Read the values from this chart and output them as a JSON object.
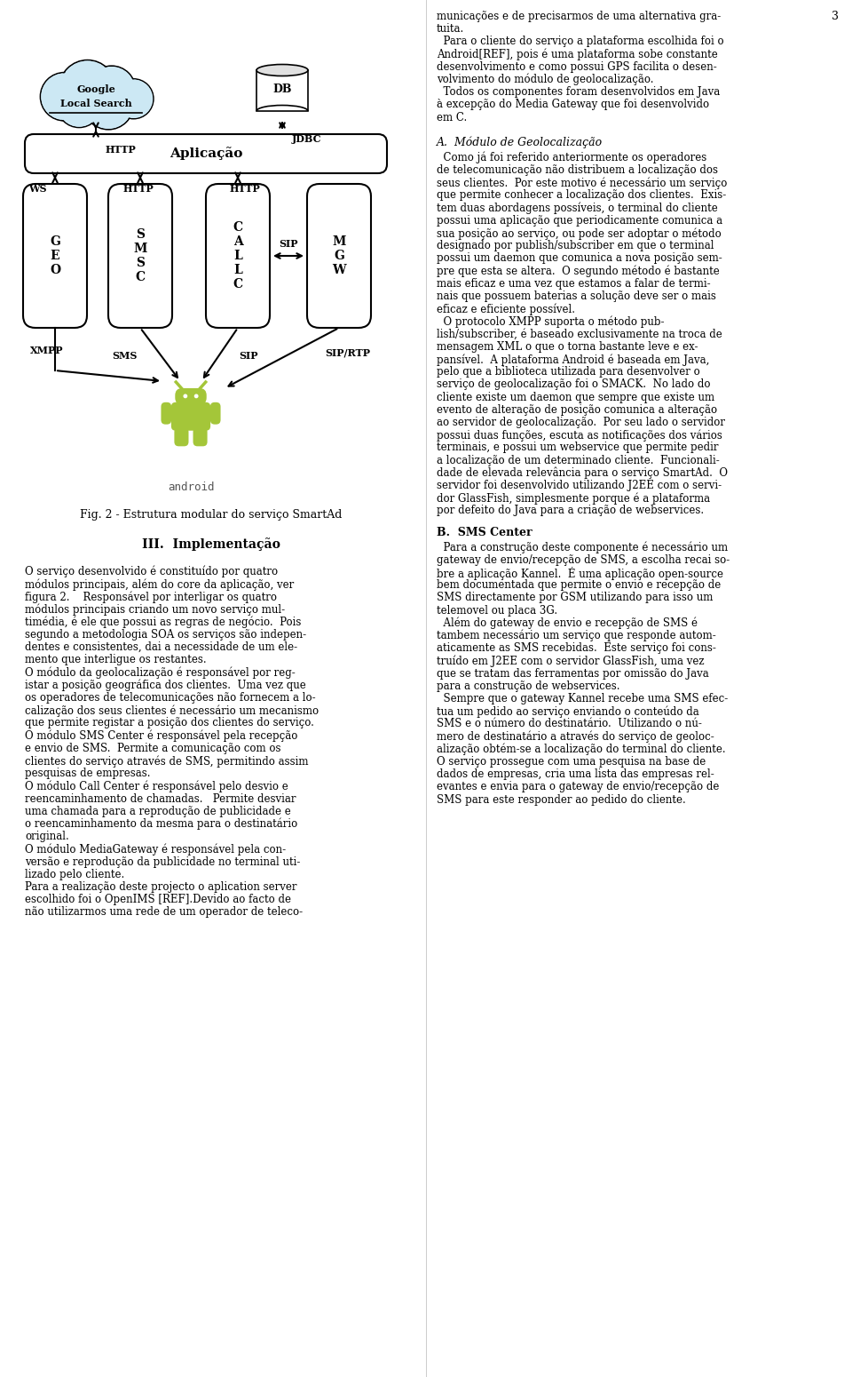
{
  "page_number": "3",
  "fig_caption": "Fig. 2 - Estrutura modular do serviço SmartAd",
  "section_title": "III.  Implementação",
  "left_col_text": [
    "O serviço desenvolvido é constituído por quatro",
    "módulos principais, além do core da aplicação, ver",
    "figura 2.    Responsável por interligar os quatro",
    "módulos principais criando um novo serviço mul-",
    "timédia, é ele que possui as regras de negócio.  Pois",
    "segundo a metodologia SOA os serviços são indepen-",
    "dentes e consistentes, dai a necessidade de um ele-",
    "mento que interligue os restantes.",
    "O módulo da geolocalização é responsável por reg-",
    "istar a posição geográfica dos clientes.  Uma vez que",
    "os operadores de telecomunicações não fornecem a lo-",
    "calização dos seus clientes é necessário um mecanismo",
    "que permite registar a posição dos clientes do serviço.",
    "O módulo SMS Center é responsável pela recepção",
    "e envio de SMS.  Permite a comunicação com os",
    "clientes do serviço através de SMS, permitindo assim",
    "pesquisas de empresas.",
    "O módulo Call Center é responsável pelo desvio e",
    "reencaminhamento de chamadas.   Permite desviar",
    "uma chamada para a reprodução de publicidade e",
    "o reencaminhamento da mesma para o destinatário",
    "original.",
    "O módulo MediaGateway é responsável pela con-",
    "versão e reprodução da publicidade no terminal uti-",
    "lizado pelo cliente.",
    "Para a realização deste projecto o aplication server",
    "escolhido foi o OpenIMS [REF].Devido ao facto de",
    "não utilizarmos uma rede de um operador de teleco-"
  ],
  "right_col_intro": [
    "municações e de precisarmos de uma alternativa gra-",
    "tuita.",
    "  Para o cliente do serviço a plataforma escolhida foi o",
    "Android[REF], pois é uma plataforma sobe constante",
    "desenvolvimento e como possui GPS facilita o desen-",
    "volvimento do módulo de geolocalização.",
    "  Todos os componentes foram desenvolvidos em Java",
    "à excepção do Media Gateway que foi desenvolvido",
    "em C."
  ],
  "subsection_A": "A.  Módulo de Geolocalização",
  "subsection_A_text": [
    "  Como já foi referido anteriormente os operadores",
    "de telecomunicação não distribuem a localização dos",
    "seus clientes.  Por este motivo é necessário um serviço",
    "que permite conhecer a localização dos clientes.  Exis-",
    "tem duas abordagens possíveis, o terminal do cliente",
    "possui uma aplicação que periodicamente comunica a",
    "sua posição ao serviço, ou pode ser adoptar o método",
    "designado por publish/subscriber em que o terminal",
    "possui um daemon que comunica a nova posição sem-",
    "pre que esta se altera.  O segundo método é bastante",
    "mais eficaz e uma vez que estamos a falar de termi-",
    "nais que possuem baterias a solução deve ser o mais",
    "eficaz e eficiente possível.",
    "  O protocolo XMPP suporta o método pub-",
    "lish/subscriber, é baseado exclusivamente na troca de",
    "mensagem XML o que o torna bastante leve e ex-",
    "pansível.  A plataforma Android é baseada em Java,",
    "pelo que a biblioteca utilizada para desenvolver o",
    "serviço de geolocalização foi o SMACK.  No lado do",
    "cliente existe um daemon que sempre que existe um",
    "evento de alteração de posição comunica a alteração",
    "ao servidor de geolocalização.  Por seu lado o servidor",
    "possui duas funções, escuta as notificações dos vários",
    "terminais, e possui um webservice que permite pedir",
    "a localização de um determinado cliente.  Funcionali-",
    "dade de elevada relevância para o serviço SmartAd.  O",
    "servidor foi desenvolvido utilizando J2EE com o servi-",
    "dor GlassFish, simplesmente porque é a plataforma",
    "por defeito do Java para a criação de webservices."
  ],
  "subsection_B": "B.  SMS Center",
  "subsection_B_text": [
    "  Para a construção deste componente é necessário um",
    "gateway de envio/recepção de SMS, a escolha recai so-",
    "bre a aplicação Kannel.  É uma aplicação open-source",
    "bem documentada que permite o envio e recepção de",
    "SMS directamente por GSM utilizando para isso um",
    "telemovel ou placa 3G.",
    "  Além do gateway de envio e recepção de SMS é",
    "tambem necessário um serviço que responde autom-",
    "aticamente as SMS recebidas.  Este serviço foi cons-",
    "truído em J2EE com o servidor GlassFish, uma vez",
    "que se tratam das ferramentas por omissão do Java",
    "para a construção de webservices.",
    "  Sempre que o gateway Kannel recebe uma SMS efec-",
    "tua um pedido ao serviço enviando o conteúdo da",
    "SMS e o número do destinatário.  Utilizando o nú-",
    "mero de destinatário a através do serviço de geoloc-",
    "alização obtém-se a localização do terminal do cliente.",
    "O serviço prossegue com uma pesquisa na base de",
    "dados de empresas, cria uma lista das empresas rel-",
    "evantes e envia para o gateway de envio/recepção de",
    "SMS para este responder ao pedido do cliente."
  ],
  "bg_color": "#ffffff",
  "text_color": "#000000",
  "diagram_box_color": "#ffffff",
  "diagram_box_edge": "#000000",
  "cloud_color": "#cce8f4",
  "android_green": "#a4c639"
}
